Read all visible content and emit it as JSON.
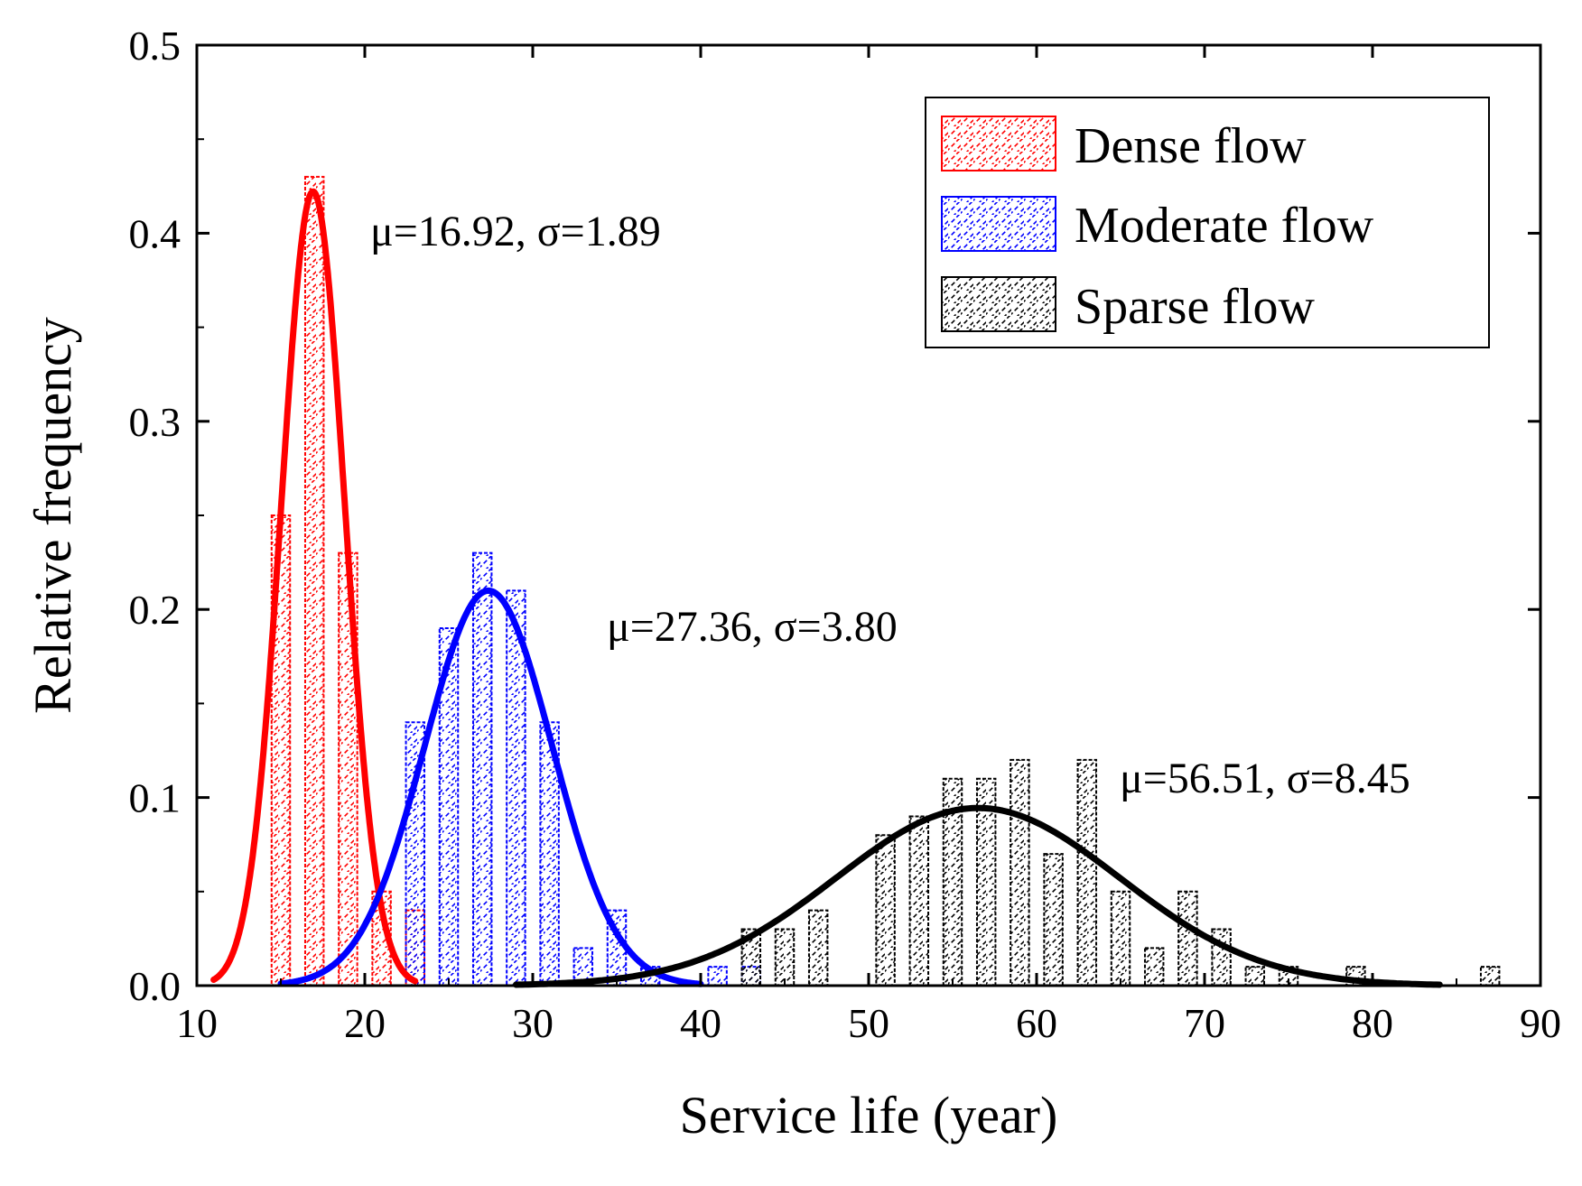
{
  "chart_data": {
    "type": "bar",
    "title": "",
    "xlabel": "Service life (year)",
    "ylabel": "Relative frequency",
    "xlim": [
      10,
      90
    ],
    "ylim": [
      0,
      0.5
    ],
    "xticks": [
      10,
      20,
      30,
      40,
      50,
      60,
      70,
      80,
      90
    ],
    "xtick_labels": [
      "10",
      "20",
      "30",
      "40",
      "50",
      "60",
      "70",
      "80",
      "90"
    ],
    "yticks": [
      0,
      0.1,
      0.2,
      0.3,
      0.4,
      0.5
    ],
    "ytick_labels": [
      "0.0",
      "0.1",
      "0.2",
      "0.3",
      "0.4",
      "0.5"
    ],
    "bin_width": 2,
    "legend_position": "top-right",
    "grid": false,
    "series": [
      {
        "name": "Dense flow",
        "color": "#ff0000",
        "bins": [
          {
            "x": 15,
            "value": 0.25
          },
          {
            "x": 17,
            "value": 0.43
          },
          {
            "x": 19,
            "value": 0.23
          },
          {
            "x": 21,
            "value": 0.05
          },
          {
            "x": 23,
            "value": 0.04
          }
        ],
        "fit": {
          "mu": 16.92,
          "sigma": 1.89,
          "range": [
            11,
            23
          ]
        },
        "annotation": "μ=16.92, σ=1.89"
      },
      {
        "name": "Moderate flow",
        "color": "#0000ff",
        "bins": [
          {
            "x": 23,
            "value": 0.14
          },
          {
            "x": 25,
            "value": 0.19
          },
          {
            "x": 27,
            "value": 0.23
          },
          {
            "x": 29,
            "value": 0.21
          },
          {
            "x": 31,
            "value": 0.14
          },
          {
            "x": 33,
            "value": 0.02
          },
          {
            "x": 35,
            "value": 0.04
          },
          {
            "x": 37,
            "value": 0.01
          },
          {
            "x": 41,
            "value": 0.01
          },
          {
            "x": 43,
            "value": 0.01
          }
        ],
        "fit": {
          "mu": 27.36,
          "sigma": 3.8,
          "range": [
            15,
            40
          ]
        },
        "annotation": "μ=27.36, σ=3.80"
      },
      {
        "name": "Sparse flow",
        "color": "#000000",
        "bins": [
          {
            "x": 43,
            "value": 0.03
          },
          {
            "x": 45,
            "value": 0.03
          },
          {
            "x": 47,
            "value": 0.04
          },
          {
            "x": 51,
            "value": 0.08
          },
          {
            "x": 53,
            "value": 0.09
          },
          {
            "x": 55,
            "value": 0.11
          },
          {
            "x": 57,
            "value": 0.11
          },
          {
            "x": 59,
            "value": 0.12
          },
          {
            "x": 61,
            "value": 0.07
          },
          {
            "x": 63,
            "value": 0.12
          },
          {
            "x": 65,
            "value": 0.05
          },
          {
            "x": 67,
            "value": 0.02
          },
          {
            "x": 69,
            "value": 0.05
          },
          {
            "x": 71,
            "value": 0.03
          },
          {
            "x": 73,
            "value": 0.01
          },
          {
            "x": 75,
            "value": 0.01
          },
          {
            "x": 79,
            "value": 0.01
          },
          {
            "x": 87,
            "value": 0.01
          }
        ],
        "fit": {
          "mu": 56.51,
          "sigma": 8.45,
          "range": [
            29,
            84
          ]
        },
        "annotation": "μ=56.51, σ=8.45"
      }
    ]
  }
}
